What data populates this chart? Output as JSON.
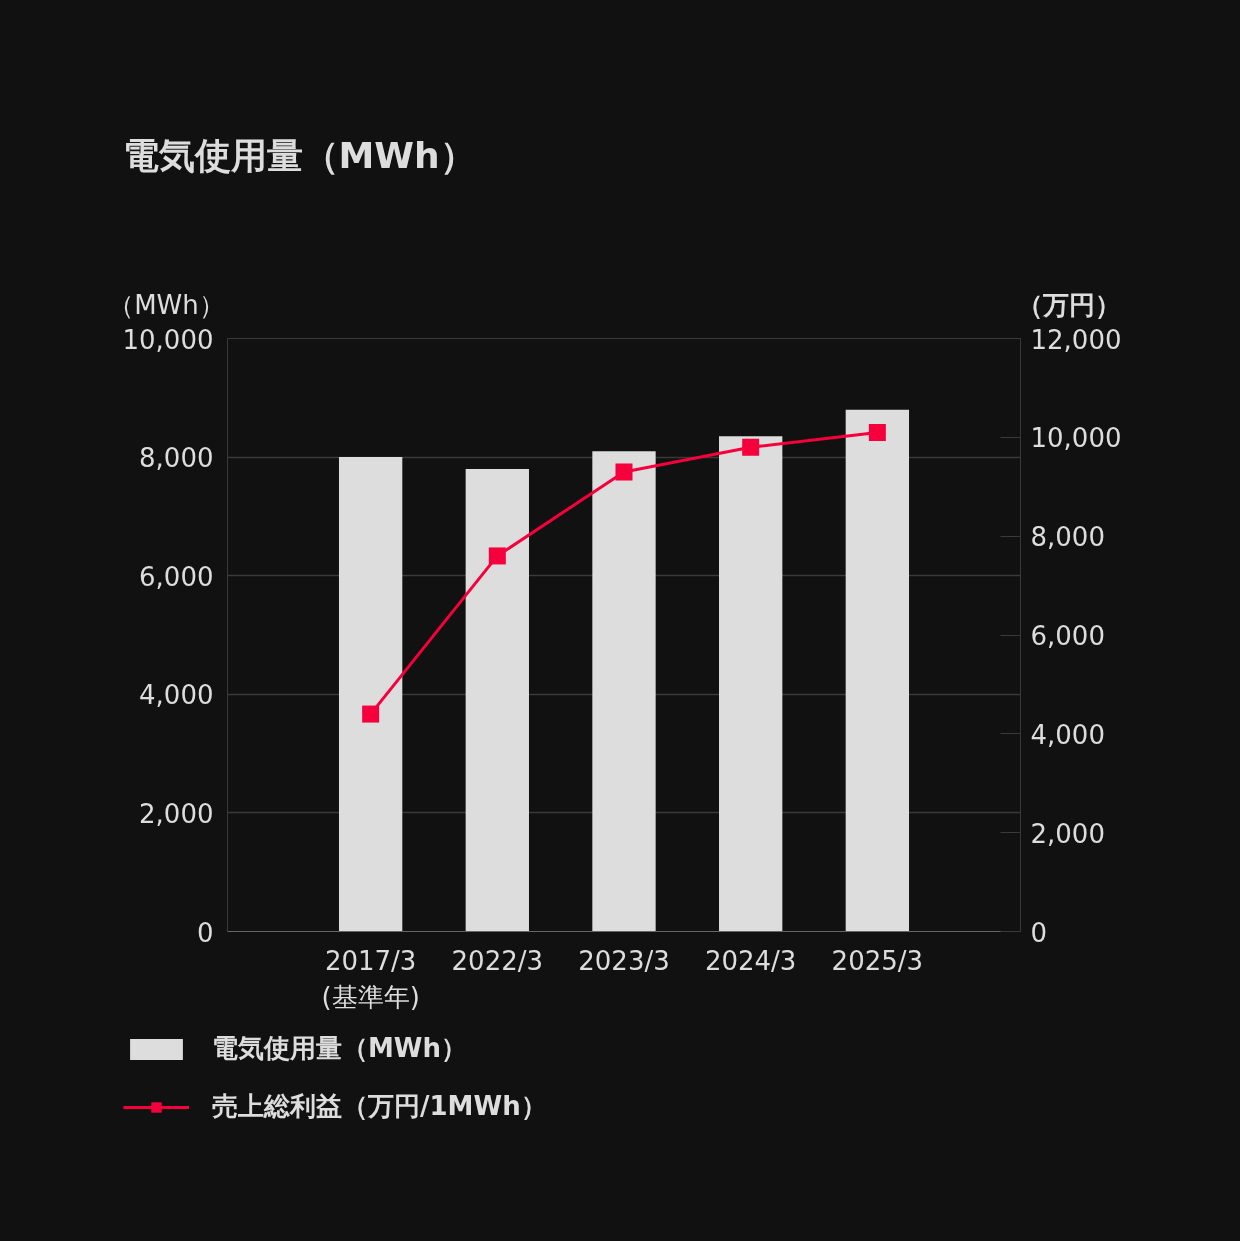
{
  "chart_data": {
    "type": "bar",
    "title": "電気使用量（MWh）",
    "ylabel": "（MWh）",
    "y2label": "（万円）",
    "categories": [
      "2017/3\n(基準年)",
      "2022/3",
      "2023/3",
      "2024/3",
      "2025/3"
    ],
    "series": [
      {
        "name": "電気使用量（MWh）",
        "color": "#dddddd",
        "values": [
          8000,
          7800,
          8100,
          8350,
          8800
        ]
      },
      {
        "name": "売上総利益（万円/1MWh）",
        "type": "line",
        "axis": "y2",
        "color": "#f5003c",
        "values": [
          4400,
          7600,
          9300,
          9800,
          10100
        ]
      }
    ],
    "ylim": [
      0,
      10000
    ],
    "yticks": [
      0,
      {
        "value": 2000,
        "label": "2,000"
      },
      {
        "value": 4000,
        "label": "4,000"
      },
      {
        "value": 6000,
        "label": "6,000"
      },
      {
        "value": 8000,
        "label": "8,000"
      },
      {
        "value": 10000,
        "label": "10,000"
      }
    ],
    "y2lim": [
      0,
      12000
    ],
    "y2ticks": [
      0,
      {
        "value": 2000,
        "label": "2,000"
      },
      {
        "value": 4000,
        "label": "4,000"
      },
      {
        "value": 6000,
        "label": "6,000"
      },
      {
        "value": 8000,
        "label": "8,000"
      },
      {
        "value": 10000,
        "label": "10,000"
      },
      {
        "value": 12000,
        "label": "12,000"
      }
    ],
    "grid": "y",
    "marker": "square",
    "legend": "bottom left"
  }
}
